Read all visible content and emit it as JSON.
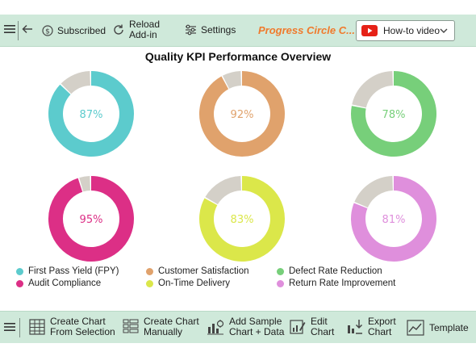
{
  "toolbar_top": {
    "subscribed_label": "Subscribed",
    "reload_label_1": "Reload",
    "reload_label_2": "Add-in",
    "settings_label": "Settings",
    "brand": "Progress Circle C...",
    "howto_label": "How-to video"
  },
  "chart_data": {
    "type": "progress-circle",
    "title": "Quality KPI Performance Overview",
    "items": [
      {
        "name": "First Pass Yield (FPY)",
        "value": 87,
        "label": "87%",
        "color": "#5ccbcd"
      },
      {
        "name": "Customer Satisfaction",
        "value": 92,
        "label": "92%",
        "color": "#e0a26c"
      },
      {
        "name": "Defect Rate Reduction",
        "value": 78,
        "label": "78%",
        "color": "#77cf7a"
      },
      {
        "name": "Audit Compliance",
        "value": 95,
        "label": "95%",
        "color": "#dc2f86"
      },
      {
        "name": "On-Time Delivery",
        "value": 83,
        "label": "83%",
        "color": "#dbe74a"
      },
      {
        "name": "Return Rate Improvement",
        "value": 81,
        "label": "81%",
        "color": "#df8fdc"
      }
    ],
    "track_color": "#d4d0c8",
    "legend_position": "bottom"
  },
  "toolbar_bottom": {
    "create_selection_1": "Create Chart",
    "create_selection_2": "From Selection",
    "create_manual_1": "Create Chart",
    "create_manual_2": "Manually",
    "add_sample_1": "Add Sample",
    "add_sample_2": "Chart + Data",
    "edit_1": "Edit",
    "edit_2": "Chart",
    "export_1": "Export",
    "export_2": "Chart",
    "template_label": "Template"
  }
}
